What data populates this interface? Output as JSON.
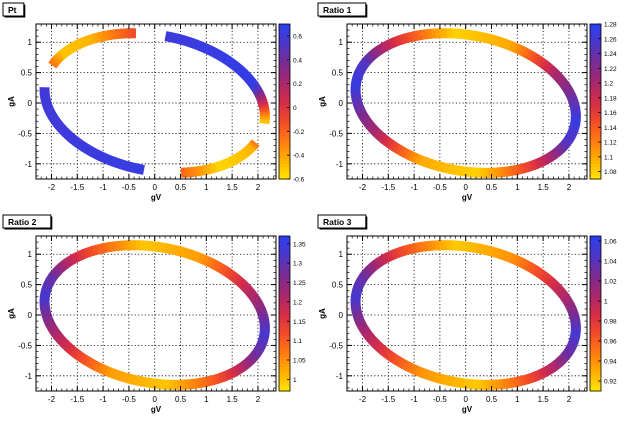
{
  "chart_data": [
    {
      "type": "heatmap",
      "title": "Pt",
      "xlabel": "gV",
      "ylabel": "gA",
      "xlim": [
        -2.3,
        2.35
      ],
      "ylim": [
        -1.25,
        1.3
      ],
      "x_ticks": [
        -2,
        -1.5,
        -1,
        -0.5,
        0,
        0.5,
        1,
        1.5,
        2
      ],
      "x_tick_labels": [
        "-2",
        "-1.5",
        "-1",
        "-0.5",
        "0",
        "0.5",
        "1",
        "1.5",
        "2"
      ],
      "y_ticks": [
        -1,
        -0.5,
        0,
        0.5,
        1
      ],
      "y_tick_labels": [
        "-1",
        "-0.5",
        "0",
        "0.5",
        "1"
      ],
      "grid": true,
      "ellipse": {
        "center": [
          0,
          0
        ],
        "semi_axes": [
          2.15,
          1.12
        ],
        "rotation_deg": -8
      },
      "arc_gaps_deg": [
        [
          88,
          104
        ],
        [
          162,
          182
        ],
        [
          268,
          288
        ],
        [
          340,
          358
        ]
      ],
      "z_range": [
        -0.6,
        0.7
      ],
      "colorbar_ticks": [
        -0.6,
        -0.4,
        -0.2,
        0,
        0.2,
        0.4,
        0.6
      ],
      "colorbar_tick_labels": [
        "-0.6",
        "-0.4",
        "-0.2",
        "0",
        "0.2",
        "0.4",
        "0.6"
      ],
      "value_profile": [
        {
          "angle_deg": 0,
          "z": -0.5
        },
        {
          "angle_deg": 30,
          "z": 0.65
        },
        {
          "angle_deg": 60,
          "z": 0.65
        },
        {
          "angle_deg": 88,
          "z": 0.62
        },
        {
          "angle_deg": 104,
          "z": -0.1
        },
        {
          "angle_deg": 130,
          "z": -0.45
        },
        {
          "angle_deg": 150,
          "z": -0.5
        },
        {
          "angle_deg": 162,
          "z": -0.25
        },
        {
          "angle_deg": 182,
          "z": 0.6
        },
        {
          "angle_deg": 230,
          "z": 0.62
        },
        {
          "angle_deg": 268,
          "z": 0.65
        },
        {
          "angle_deg": 288,
          "z": -0.2
        },
        {
          "angle_deg": 310,
          "z": -0.55
        },
        {
          "angle_deg": 335,
          "z": -0.45
        },
        {
          "angle_deg": 340,
          "z": -0.25
        },
        {
          "angle_deg": 360,
          "z": -0.5
        }
      ]
    },
    {
      "type": "heatmap",
      "title": "Ratio 1",
      "xlabel": "gV",
      "ylabel": "gA",
      "xlim": [
        -2.3,
        2.35
      ],
      "ylim": [
        -1.25,
        1.3
      ],
      "x_ticks": [
        -2,
        -1.5,
        -1,
        -0.5,
        0,
        0.5,
        1,
        1.5,
        2
      ],
      "x_tick_labels": [
        "-2",
        "-1.5",
        "-1",
        "-0.5",
        "0",
        "0.5",
        "1",
        "1.5",
        "2"
      ],
      "y_ticks": [
        -1,
        -0.5,
        0,
        0.5,
        1
      ],
      "y_tick_labels": [
        "-1",
        "-0.5",
        "0",
        "0.5",
        "1"
      ],
      "grid": true,
      "ellipse": {
        "center": [
          0,
          0
        ],
        "semi_axes": [
          2.15,
          1.12
        ],
        "rotation_deg": -8
      },
      "arc_gaps_deg": [],
      "z_range": [
        1.07,
        1.28
      ],
      "colorbar_ticks": [
        1.08,
        1.1,
        1.12,
        1.14,
        1.16,
        1.18,
        1.2,
        1.22,
        1.24,
        1.26,
        1.28
      ],
      "colorbar_tick_labels": [
        "1.08",
        "1.1",
        "1.12",
        "1.14",
        "1.16",
        "1.18",
        "1.2",
        "1.22",
        "1.24",
        "1.26",
        "1.28"
      ],
      "value_profile": [
        {
          "angle_deg": 0,
          "z": 1.27
        },
        {
          "angle_deg": 40,
          "z": 1.2
        },
        {
          "angle_deg": 70,
          "z": 1.1
        },
        {
          "angle_deg": 100,
          "z": 1.08
        },
        {
          "angle_deg": 130,
          "z": 1.16
        },
        {
          "angle_deg": 160,
          "z": 1.25
        },
        {
          "angle_deg": 180,
          "z": 1.27
        },
        {
          "angle_deg": 220,
          "z": 1.2
        },
        {
          "angle_deg": 250,
          "z": 1.1
        },
        {
          "angle_deg": 280,
          "z": 1.08
        },
        {
          "angle_deg": 310,
          "z": 1.16
        },
        {
          "angle_deg": 340,
          "z": 1.25
        },
        {
          "angle_deg": 360,
          "z": 1.27
        }
      ]
    },
    {
      "type": "heatmap",
      "title": "Ratio 2",
      "xlabel": "gV",
      "ylabel": "gA",
      "xlim": [
        -2.3,
        2.35
      ],
      "ylim": [
        -1.25,
        1.3
      ],
      "x_ticks": [
        -2,
        -1.5,
        -1,
        -0.5,
        0,
        0.5,
        1,
        1.5,
        2
      ],
      "x_tick_labels": [
        "-2",
        "-1.5",
        "-1",
        "-0.5",
        "0",
        "0.5",
        "1",
        "1.5",
        "2"
      ],
      "y_ticks": [
        -1,
        -0.5,
        0,
        0.5,
        1
      ],
      "y_tick_labels": [
        "-1",
        "-0.5",
        "0",
        "0.5",
        "1"
      ],
      "grid": true,
      "ellipse": {
        "center": [
          0,
          0
        ],
        "semi_axes": [
          2.15,
          1.12
        ],
        "rotation_deg": -8
      },
      "arc_gaps_deg": [],
      "z_range": [
        0.97,
        1.37
      ],
      "colorbar_ticks": [
        1,
        1.05,
        1.1,
        1.15,
        1.2,
        1.25,
        1.3,
        1.35
      ],
      "colorbar_tick_labels": [
        "1",
        "1.05",
        "1.1",
        "1.15",
        "1.2",
        "1.25",
        "1.3",
        "1.35"
      ],
      "value_profile": [
        {
          "angle_deg": 0,
          "z": 1.33
        },
        {
          "angle_deg": 40,
          "z": 1.18
        },
        {
          "angle_deg": 70,
          "z": 1.04
        },
        {
          "angle_deg": 100,
          "z": 1.0
        },
        {
          "angle_deg": 130,
          "z": 1.12
        },
        {
          "angle_deg": 160,
          "z": 1.28
        },
        {
          "angle_deg": 180,
          "z": 1.33
        },
        {
          "angle_deg": 220,
          "z": 1.18
        },
        {
          "angle_deg": 250,
          "z": 1.04
        },
        {
          "angle_deg": 280,
          "z": 1.0
        },
        {
          "angle_deg": 310,
          "z": 1.12
        },
        {
          "angle_deg": 340,
          "z": 1.28
        },
        {
          "angle_deg": 360,
          "z": 1.33
        }
      ]
    },
    {
      "type": "heatmap",
      "title": "Ratio 3",
      "xlabel": "gV",
      "ylabel": "gA",
      "xlim": [
        -2.3,
        2.35
      ],
      "ylim": [
        -1.25,
        1.3
      ],
      "x_ticks": [
        -2,
        -1.5,
        -1,
        -0.5,
        0,
        0.5,
        1,
        1.5,
        2
      ],
      "x_tick_labels": [
        "-2",
        "-1.5",
        "-1",
        "-0.5",
        "0",
        "0.5",
        "1",
        "1.5",
        "2"
      ],
      "y_ticks": [
        -1,
        -0.5,
        0,
        0.5,
        1
      ],
      "y_tick_labels": [
        "-1",
        "-0.5",
        "0",
        "0.5",
        "1"
      ],
      "grid": true,
      "ellipse": {
        "center": [
          0,
          0
        ],
        "semi_axes": [
          2.15,
          1.12
        ],
        "rotation_deg": -8
      },
      "arc_gaps_deg": [],
      "z_range": [
        0.91,
        1.065
      ],
      "colorbar_ticks": [
        0.92,
        0.94,
        0.96,
        0.98,
        1,
        1.02,
        1.04,
        1.06
      ],
      "colorbar_tick_labels": [
        "0.92",
        "0.94",
        "0.96",
        "0.98",
        "1",
        "1.02",
        "1.04",
        "1.06"
      ],
      "value_profile": [
        {
          "angle_deg": 0,
          "z": 1.05
        },
        {
          "angle_deg": 40,
          "z": 0.99
        },
        {
          "angle_deg": 70,
          "z": 0.94
        },
        {
          "angle_deg": 100,
          "z": 0.92
        },
        {
          "angle_deg": 130,
          "z": 0.97
        },
        {
          "angle_deg": 160,
          "z": 1.03
        },
        {
          "angle_deg": 180,
          "z": 1.05
        },
        {
          "angle_deg": 220,
          "z": 0.99
        },
        {
          "angle_deg": 250,
          "z": 0.94
        },
        {
          "angle_deg": 280,
          "z": 0.92
        },
        {
          "angle_deg": 310,
          "z": 0.97
        },
        {
          "angle_deg": 340,
          "z": 1.03
        },
        {
          "angle_deg": 360,
          "z": 1.05
        }
      ]
    }
  ],
  "palette": [
    "#ffe600",
    "#ffb000",
    "#ff7a10",
    "#f24a28",
    "#d42c4a",
    "#a8286e",
    "#7a2c92",
    "#4e36c8",
    "#2c3ff0"
  ]
}
